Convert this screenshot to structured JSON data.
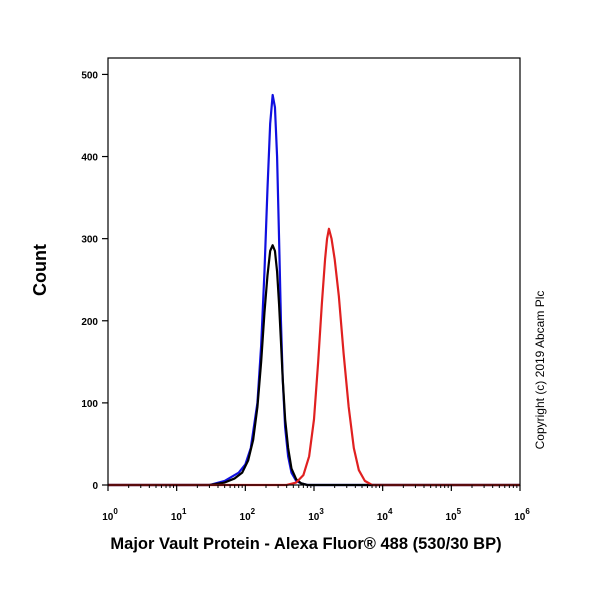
{
  "chart_data": {
    "type": "line",
    "title": "",
    "xlabel": "Major Vault Protein - Alexa Fluor® 488 (530/30 BP)",
    "ylabel": "Count",
    "x_scale": "log",
    "xlim": [
      1,
      1000000
    ],
    "ylim": [
      0,
      520
    ],
    "x_ticks": [
      1,
      10,
      100,
      1000,
      10000,
      100000,
      1000000
    ],
    "x_tick_labels": [
      {
        "base": "10",
        "exp": "0"
      },
      {
        "base": "10",
        "exp": "1"
      },
      {
        "base": "10",
        "exp": "2"
      },
      {
        "base": "10",
        "exp": "3"
      },
      {
        "base": "10",
        "exp": "4"
      },
      {
        "base": "10",
        "exp": "5"
      },
      {
        "base": "10",
        "exp": "6"
      }
    ],
    "y_ticks": [
      0,
      100,
      200,
      300,
      400,
      500
    ],
    "y_tick_labels": [
      "0",
      "100",
      "200",
      "300",
      "400",
      "500"
    ],
    "annotation": "Copyright (c) 2019 Abcam Plc",
    "grid": false,
    "series": [
      {
        "color": "#1010e0",
        "x": [
          1,
          30,
          50,
          80,
          100,
          120,
          150,
          170,
          190,
          210,
          230,
          250,
          270,
          290,
          310,
          330,
          350,
          380,
          420,
          470,
          550,
          650,
          800,
          1000000
        ],
        "y": [
          0,
          0,
          5,
          15,
          25,
          45,
          100,
          170,
          260,
          360,
          440,
          475,
          460,
          400,
          300,
          200,
          130,
          70,
          35,
          15,
          5,
          2,
          0,
          0
        ]
      },
      {
        "color": "#000000",
        "x": [
          1,
          30,
          50,
          70,
          90,
          110,
          130,
          150,
          170,
          190,
          210,
          230,
          250,
          270,
          290,
          310,
          330,
          350,
          380,
          420,
          470,
          550,
          650,
          800,
          1000000
        ],
        "y": [
          0,
          0,
          3,
          8,
          15,
          30,
          55,
          95,
          150,
          210,
          255,
          285,
          292,
          285,
          260,
          220,
          175,
          130,
          80,
          45,
          20,
          7,
          2,
          0,
          0
        ]
      },
      {
        "color": "#e02020",
        "x": [
          1,
          400,
          550,
          700,
          850,
          1000,
          1150,
          1300,
          1450,
          1550,
          1650,
          1800,
          2000,
          2300,
          2700,
          3200,
          3800,
          4500,
          5500,
          7000,
          1000000
        ],
        "y": [
          0,
          0,
          3,
          12,
          35,
          80,
          150,
          220,
          275,
          300,
          312,
          300,
          275,
          230,
          160,
          95,
          45,
          18,
          5,
          0,
          0
        ]
      }
    ]
  }
}
